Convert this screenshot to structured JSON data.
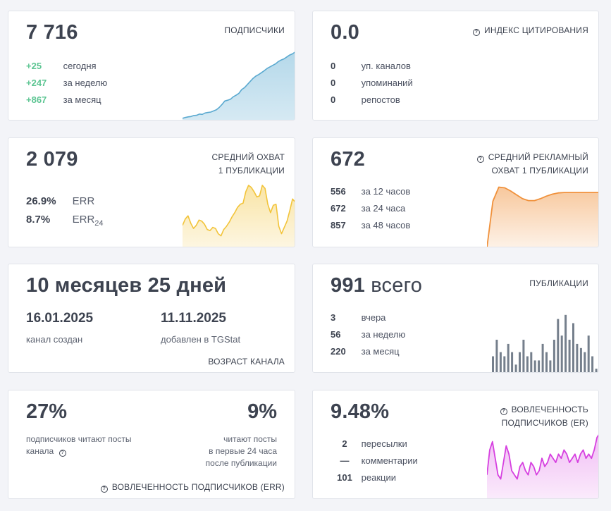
{
  "subscribers": {
    "value": "7 716",
    "title": "ПОДПИСЧИКИ",
    "rows": [
      {
        "value": "+25",
        "label": "сегодня"
      },
      {
        "value": "+247",
        "label": "за неделю"
      },
      {
        "value": "+867",
        "label": "за месяц"
      }
    ],
    "chart_data": {
      "type": "area",
      "title": "",
      "series": [
        {
          "name": "subscribers",
          "values": [
            6849,
            6860,
            6868,
            6872,
            6885,
            6888,
            6905,
            6900,
            6918,
            6925,
            6930,
            6945,
            6960,
            6990,
            7030,
            7075,
            7085,
            7098,
            7130,
            7150,
            7175,
            7225,
            7250,
            7290,
            7330,
            7370,
            7400,
            7420,
            7445,
            7470,
            7500,
            7520,
            7540,
            7560,
            7590,
            7610,
            7625,
            7650,
            7675,
            7690,
            7716
          ]
        }
      ],
      "ylim": [
        6820,
        7740
      ],
      "color": "#5aa9d0"
    }
  },
  "citation": {
    "value": "0.0",
    "title": "ИНДЕКС ЦИТИРОВАНИЯ",
    "icon": "help-icon",
    "rows": [
      {
        "value": "0",
        "label": "уп. каналов"
      },
      {
        "value": "0",
        "label": "упоминаний"
      },
      {
        "value": "0",
        "label": "репостов"
      }
    ],
    "chart_data": {
      "type": "line",
      "series": [
        {
          "name": "citation",
          "values": [
            0,
            0,
            0,
            0,
            0,
            0,
            0,
            0,
            0,
            0
          ]
        }
      ],
      "ylim": [
        0,
        1
      ],
      "color": "#5cc592"
    }
  },
  "reach": {
    "value": "2 079",
    "title_line1": "СРЕДНИЙ ОХВАТ",
    "title_line2": "1 ПУБЛИКАЦИИ",
    "err_label": "ERR",
    "err_value": "26.9%",
    "err24_label": "ERR",
    "err24_sub": "24",
    "err24_value": "8.7%",
    "chart_data": {
      "type": "area",
      "series": [
        {
          "name": "reach",
          "values": [
            1880,
            1940,
            1970,
            1900,
            1850,
            1880,
            1930,
            1920,
            1890,
            1840,
            1830,
            1860,
            1850,
            1800,
            1780,
            1840,
            1870,
            1910,
            1960,
            2000,
            2050,
            2080,
            2090,
            2200,
            2260,
            2240,
            2200,
            2150,
            2160,
            2260,
            2230,
            2080,
            2000,
            2070,
            2080,
            1870,
            1800,
            1860,
            1920,
            2020,
            2130,
            2100
          ]
        }
      ],
      "ylim": [
        1670,
        2340
      ],
      "color": "#f2c43a"
    }
  },
  "ad_reach": {
    "value": "672",
    "title_line1": "СРЕДНИЙ РЕКЛАМНЫЙ",
    "title_line2": "ОХВАТ 1 ПУБЛИКАЦИИ",
    "icon": "help-icon",
    "rows": [
      {
        "value": "556",
        "label": "за 12 часов"
      },
      {
        "value": "672",
        "label": "за 24 часа"
      },
      {
        "value": "857",
        "label": "за 48 часов"
      }
    ],
    "chart_data": {
      "type": "area",
      "series": [
        {
          "name": "ad reach",
          "values": [
            0,
            720,
            940,
            930,
            880,
            820,
            760,
            730,
            730,
            760,
            800,
            830,
            850,
            857,
            857,
            857,
            857,
            857,
            857,
            857
          ]
        }
      ],
      "ylim": [
        0,
        1100
      ],
      "color": "#f0913b"
    }
  },
  "age": {
    "value": "10 месяцев 25 дней",
    "created_date": "16.01.2025",
    "created_label": "канал создан",
    "added_date": "11.11.2025",
    "added_label": "добавлен в TGStat",
    "title": "ВОЗРАСТ КАНАЛА"
  },
  "posts": {
    "value": "991",
    "value_suffix": "всего",
    "title": "ПУБЛИКАЦИИ",
    "rows": [
      {
        "value": "3",
        "label": "вчера"
      },
      {
        "value": "56",
        "label": "за неделю"
      },
      {
        "value": "220",
        "label": "за месяц"
      }
    ],
    "chart_data": {
      "type": "bar",
      "series": [
        {
          "name": "posts",
          "values": [
            4,
            8,
            5,
            4,
            7,
            5,
            2,
            5,
            8,
            4,
            5,
            3,
            3,
            7,
            5,
            3,
            8,
            13,
            9,
            14,
            8,
            12,
            7,
            6,
            5,
            9,
            4,
            1
          ]
        }
      ],
      "ylim": [
        0,
        16
      ],
      "color": "#757f8c"
    }
  },
  "readers": {
    "value_left": "27%",
    "desc_left_1": "подписчиков читают посты",
    "desc_left_2": "канала",
    "value_right": "9%",
    "desc_right_1": "читают посты",
    "desc_right_2": "в первые 24 часа",
    "desc_right_3": "после публикации",
    "title": "ВОВЛЕЧЕННОСТЬ ПОДПИСЧИКОВ (ERR)",
    "icon": "help-icon"
  },
  "engagement": {
    "value": "9.48%",
    "title_line1": "ВОВЛЕЧЕННОСТЬ",
    "title_line2": "ПОДПИСЧИКОВ (ER)",
    "icon": "help-icon",
    "rows": [
      {
        "value": "2",
        "label": "пересылки"
      },
      {
        "value": "—",
        "label": "комментарии"
      },
      {
        "value": "101",
        "label": "реакции"
      }
    ],
    "chart_data": {
      "type": "area",
      "series": [
        {
          "name": "ER",
          "values": [
            6,
            12,
            14,
            10,
            6,
            5,
            9,
            13,
            11,
            7,
            6,
            5,
            8,
            9,
            7,
            6,
            9,
            8,
            6,
            7,
            10,
            8,
            9,
            11,
            10,
            9,
            11,
            10,
            12,
            11,
            9,
            10,
            11,
            9,
            11,
            12,
            10,
            11,
            10,
            12,
            15,
            16
          ]
        }
      ],
      "ylim": [
        0,
        17
      ],
      "color": "#d640e0"
    }
  }
}
